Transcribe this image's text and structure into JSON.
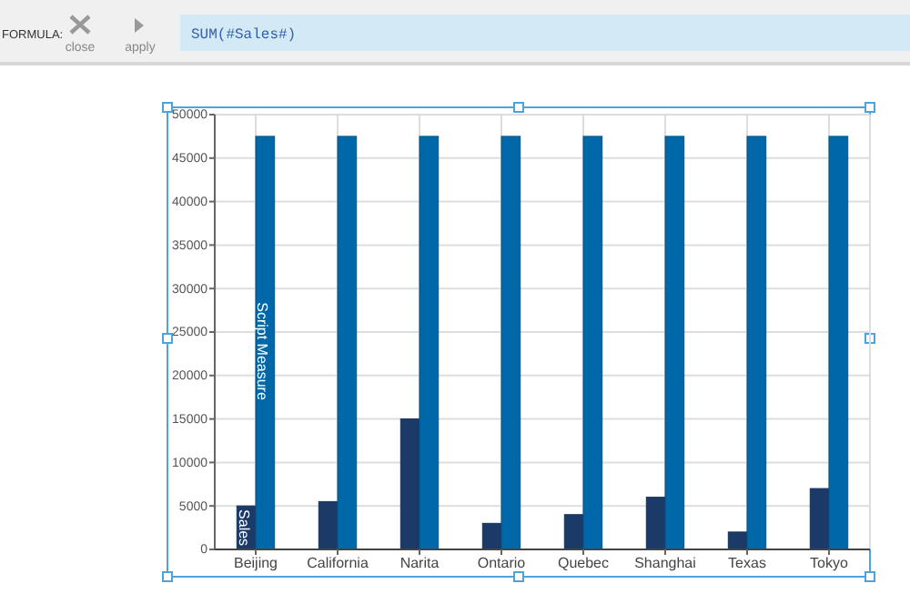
{
  "chart_data": {
    "type": "bar",
    "categories": [
      "Beijing",
      "California",
      "Narita",
      "Ontario",
      "Quebec",
      "Shanghai",
      "Texas",
      "Tokyo"
    ],
    "series": [
      {
        "name": "Sales",
        "color": "#1c3a68",
        "values": [
          5000,
          5500,
          15000,
          3000,
          4000,
          6000,
          2000,
          7000
        ]
      },
      {
        "name": "Script Measure",
        "color": "#0068a8",
        "values": [
          47500,
          47500,
          47500,
          47500,
          47500,
          47500,
          47500,
          47500
        ]
      }
    ],
    "ylim": [
      0,
      50000
    ],
    "yticks": [
      0,
      5000,
      10000,
      15000,
      20000,
      25000,
      30000,
      35000,
      40000,
      45000,
      50000
    ],
    "grid": true,
    "annotations": [
      "FORMULA:",
      "close",
      "apply",
      "SUM(#Sales#)"
    ]
  }
}
